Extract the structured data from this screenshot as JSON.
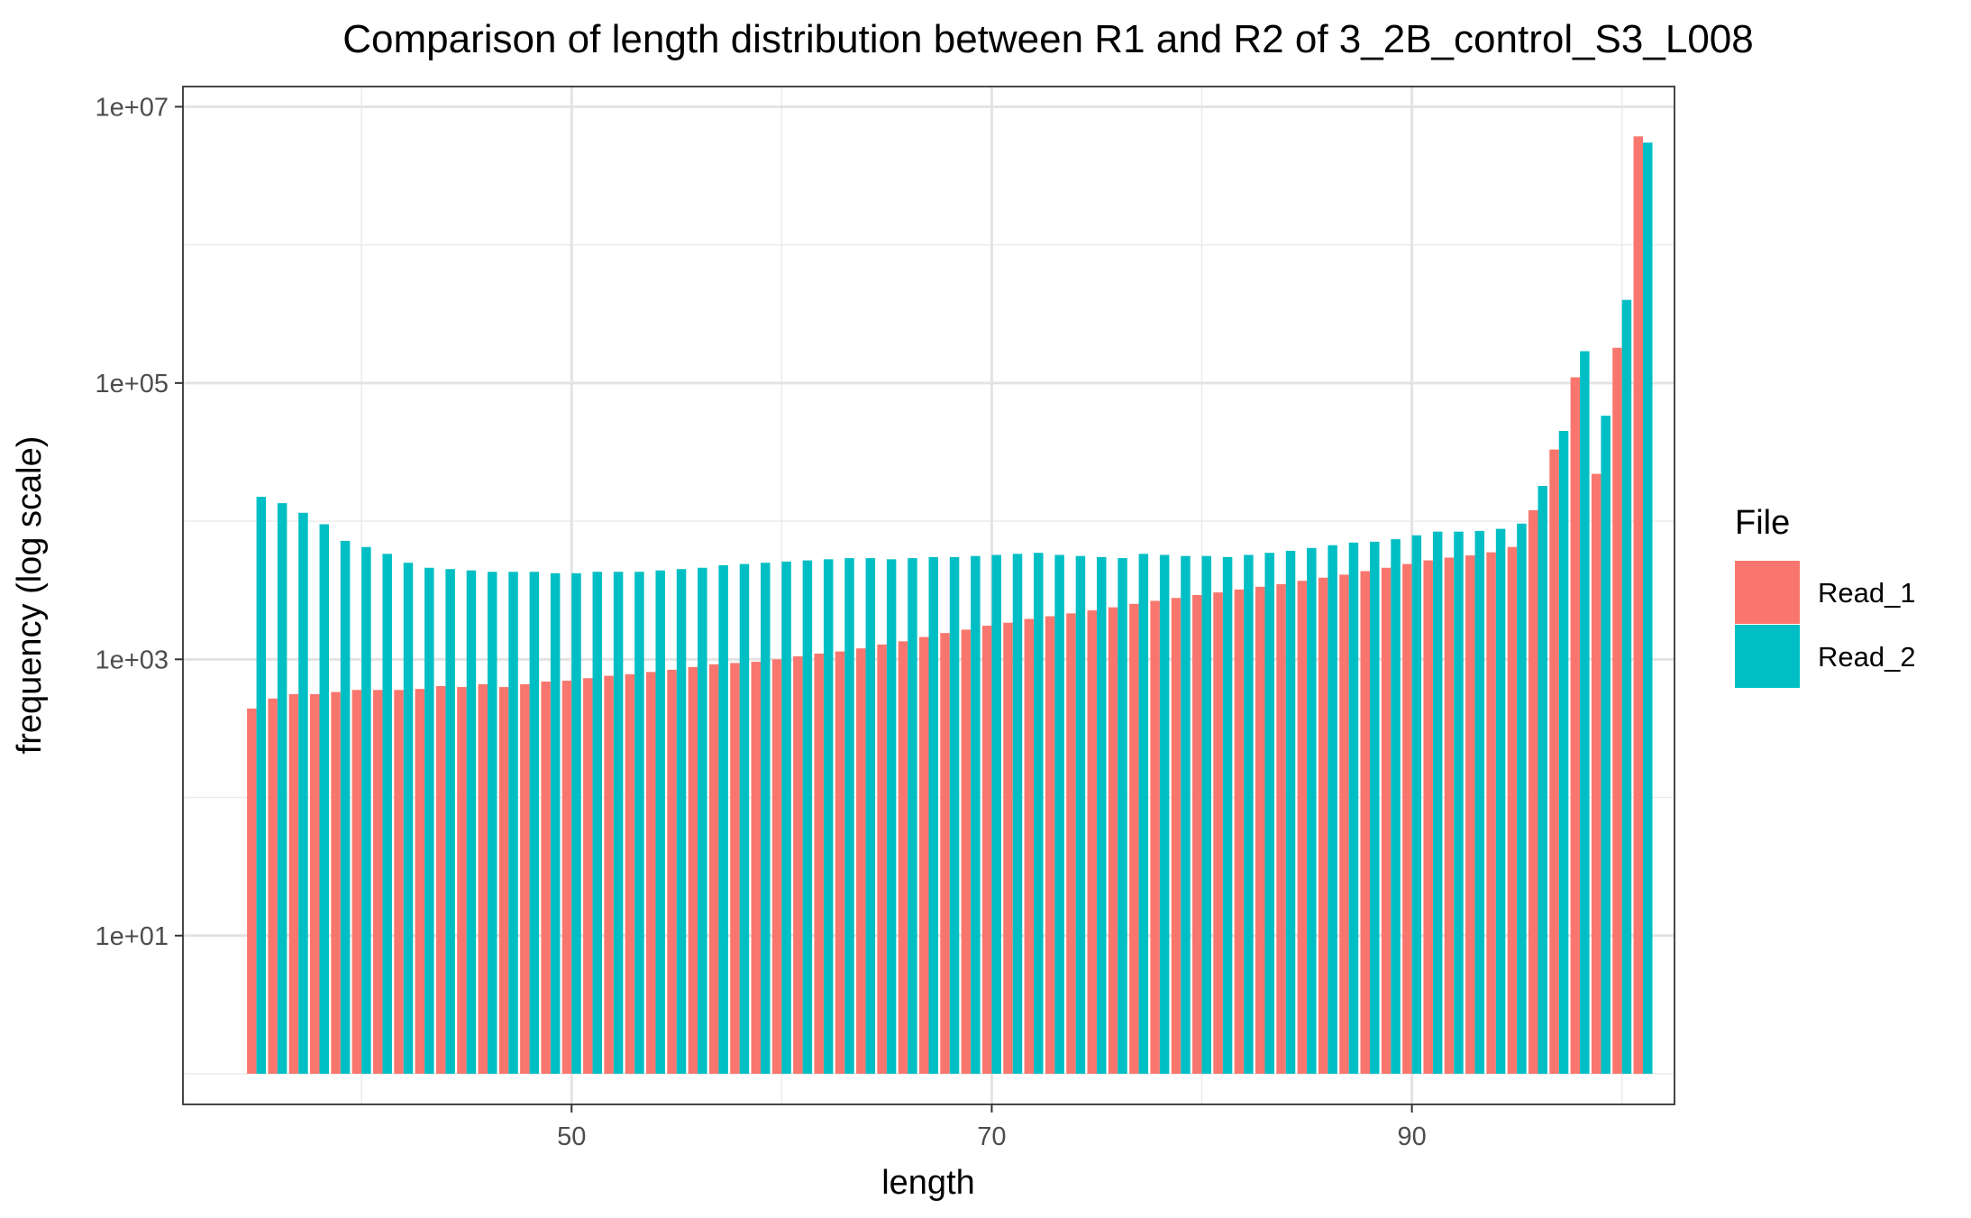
{
  "chart_data": {
    "type": "bar",
    "title": "Comparison of length distribution between R1 and R2 of 3_2B_control_S3_L008",
    "xlabel": "length",
    "ylabel": "frequency (log scale)",
    "y_scale": "log10",
    "xlim": [
      31.5,
      102.5
    ],
    "ylim": [
      0.6,
      14000000
    ],
    "bar_base": 1,
    "x_ticks": [
      50,
      70,
      90
    ],
    "x_tick_labels": [
      "50",
      "70",
      "90"
    ],
    "y_ticks": [
      10,
      1000,
      100000,
      10000000
    ],
    "y_tick_labels": [
      "1e+01",
      "1e+03",
      "1e+05",
      "1e+07"
    ],
    "grid": true,
    "legend": {
      "title": "File",
      "position": "right"
    },
    "colors": {
      "Read_1": "#F8766D",
      "Read_2": "#00BFC4"
    },
    "x": [
      35,
      36,
      37,
      38,
      39,
      40,
      41,
      42,
      43,
      44,
      45,
      46,
      47,
      48,
      49,
      50,
      51,
      52,
      53,
      54,
      55,
      56,
      57,
      58,
      59,
      60,
      61,
      62,
      63,
      64,
      65,
      66,
      67,
      68,
      69,
      70,
      71,
      72,
      73,
      74,
      75,
      76,
      77,
      78,
      79,
      80,
      81,
      82,
      83,
      84,
      85,
      86,
      87,
      88,
      89,
      90,
      91,
      92,
      93,
      94,
      95,
      96,
      97,
      98,
      99,
      100,
      101
    ],
    "series": [
      {
        "name": "Read_1",
        "values": [
          440,
          520,
          560,
          560,
          580,
          600,
          600,
          600,
          610,
          640,
          630,
          660,
          630,
          660,
          690,
          700,
          730,
          760,
          780,
          810,
          840,
          880,
          920,
          940,
          960,
          1000,
          1050,
          1100,
          1140,
          1200,
          1280,
          1350,
          1450,
          1550,
          1640,
          1750,
          1840,
          1960,
          2050,
          2150,
          2260,
          2380,
          2520,
          2650,
          2780,
          2920,
          3050,
          3200,
          3350,
          3500,
          3700,
          3900,
          4100,
          4350,
          4600,
          4900,
          5200,
          5450,
          5650,
          5950,
          6500,
          12000,
          33000,
          110000,
          22000,
          180000,
          6100000
        ]
      },
      {
        "name": "Read_2",
        "values": [
          15000,
          13500,
          11500,
          9500,
          7200,
          6500,
          5800,
          5000,
          4600,
          4500,
          4400,
          4300,
          4300,
          4300,
          4200,
          4200,
          4300,
          4300,
          4300,
          4400,
          4500,
          4600,
          4800,
          4900,
          5000,
          5100,
          5200,
          5300,
          5400,
          5400,
          5300,
          5400,
          5500,
          5500,
          5600,
          5700,
          5800,
          5900,
          5700,
          5600,
          5500,
          5400,
          5800,
          5700,
          5600,
          5600,
          5500,
          5700,
          5900,
          6100,
          6400,
          6700,
          7000,
          7100,
          7400,
          7900,
          8400,
          8400,
          8500,
          8800,
          9600,
          18000,
          45000,
          170000,
          58000,
          400000,
          5500000
        ]
      }
    ]
  }
}
